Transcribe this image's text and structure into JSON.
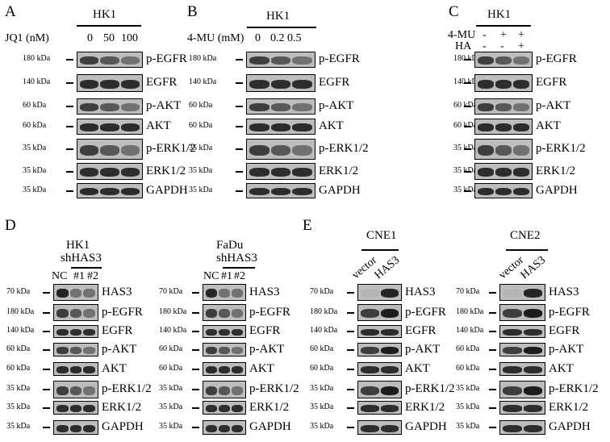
{
  "panels": [
    {
      "id": "A",
      "letter": "A",
      "cell_line": "HK1",
      "treatment_label": "JQ1 (nM)",
      "lanes": [
        "0",
        "50",
        "100"
      ],
      "rows": [
        {
          "kda": "180 kDa",
          "protein": "p-EGFR"
        },
        {
          "kda": "140 kDa",
          "protein": "EGFR"
        },
        {
          "kda": "60 kDa",
          "protein": "p-AKT"
        },
        {
          "kda": "60 kDa",
          "protein": "AKT"
        },
        {
          "kda": "35 kDa",
          "protein": "p-ERK1/2"
        },
        {
          "kda": "35 kDa",
          "protein": "ERK1/2"
        },
        {
          "kda": "35 kDa",
          "protein": "GAPDH"
        }
      ]
    },
    {
      "id": "B",
      "letter": "B",
      "cell_line": "HK1",
      "treatment_label": "4-MU (mM)",
      "lanes": [
        "0",
        "0.2",
        "0.5"
      ],
      "rows": [
        {
          "kda": "180 kDa",
          "protein": "p-EGFR"
        },
        {
          "kda": "140 kDa",
          "protein": "EGFR"
        },
        {
          "kda": "60 kDa",
          "protein": "p-AKT"
        },
        {
          "kda": "60 kDa",
          "protein": "AKT"
        },
        {
          "kda": "35 kDa",
          "protein": "p-ERK1/2"
        },
        {
          "kda": "35 kDa",
          "protein": "ERK1/2"
        },
        {
          "kda": "35 kDa",
          "protein": "GAPDH"
        }
      ]
    },
    {
      "id": "C",
      "letter": "C",
      "cell_line": "HK1",
      "treatments": [
        {
          "label": "4-MU",
          "signs": [
            "-",
            "+",
            "+"
          ]
        },
        {
          "label": "HA",
          "signs": [
            "-",
            "-",
            "+"
          ]
        }
      ],
      "rows": [
        {
          "kda": "180 kDa",
          "protein": "p-EGFR"
        },
        {
          "kda": "140 kDa",
          "protein": "EGFR"
        },
        {
          "kda": "60 kDa",
          "protein": "p-AKT"
        },
        {
          "kda": "60 kDa",
          "protein": "AKT"
        },
        {
          "kda": "35 kDa",
          "protein": "p-ERK1/2"
        },
        {
          "kda": "35 kDa",
          "protein": "ERK1/2"
        },
        {
          "kda": "35 kDa",
          "protein": "GAPDH"
        }
      ]
    },
    {
      "id": "D1",
      "letter": "D",
      "cell_line": "HK1",
      "group_label": "shHAS3",
      "lanes": [
        "NC",
        "#1",
        "#2"
      ],
      "rows": [
        {
          "kda": "70 kDa",
          "protein": "HAS3"
        },
        {
          "kda": "180 kDa",
          "protein": "p-EGFR"
        },
        {
          "kda": "140 kDa",
          "protein": "EGFR"
        },
        {
          "kda": "60 kDa",
          "protein": "p-AKT"
        },
        {
          "kda": "60 kDa",
          "protein": "AKT"
        },
        {
          "kda": "35 kDa",
          "protein": "p-ERK1/2"
        },
        {
          "kda": "35 kDa",
          "protein": "ERK1/2"
        },
        {
          "kda": "35 kDa",
          "protein": "GAPDH"
        }
      ]
    },
    {
      "id": "D2",
      "letter": "",
      "cell_line": "FaDu",
      "group_label": "shHAS3",
      "lanes": [
        "NC",
        "#1",
        "#2"
      ],
      "rows": [
        {
          "kda": "70 kDa",
          "protein": "HAS3"
        },
        {
          "kda": "180 kDa",
          "protein": "p-EGFR"
        },
        {
          "kda": "140 kDa",
          "protein": "EGFR"
        },
        {
          "kda": "60 kDa",
          "protein": "p-AKT"
        },
        {
          "kda": "60 kDa",
          "protein": "AKT"
        },
        {
          "kda": "35 kDa",
          "protein": "p-ERK1/2"
        },
        {
          "kda": "35 kDa",
          "protein": "ERK1/2"
        },
        {
          "kda": "35 kDa",
          "protein": "GAPDH"
        }
      ]
    },
    {
      "id": "E1",
      "letter": "E",
      "cell_line": "CNE1",
      "lanes": [
        "vector",
        "HAS3"
      ],
      "rows": [
        {
          "kda": "70 kDa",
          "protein": "HAS3"
        },
        {
          "kda": "180 kDa",
          "protein": "p-EGFR"
        },
        {
          "kda": "140 kDa",
          "protein": "EGFR"
        },
        {
          "kda": "60 kDa",
          "protein": "p-AKT"
        },
        {
          "kda": "60 kDa",
          "protein": "AKT"
        },
        {
          "kda": "35 kDa",
          "protein": "p-ERK1/2"
        },
        {
          "kda": "35 kDa",
          "protein": "ERK1/2"
        },
        {
          "kda": "35 kDa",
          "protein": "GAPDH"
        }
      ]
    },
    {
      "id": "E2",
      "letter": "",
      "cell_line": "CNE2",
      "lanes": [
        "vector",
        "HAS3"
      ],
      "rows": [
        {
          "kda": "70 kDa",
          "protein": "HAS3"
        },
        {
          "kda": "180 kDa",
          "protein": "p-EGFR"
        },
        {
          "kda": "140 kDa",
          "protein": "EGFR"
        },
        {
          "kda": "60 kDa",
          "protein": "p-AKT"
        },
        {
          "kda": "60 kDa",
          "protein": "AKT"
        },
        {
          "kda": "35 kDa",
          "protein": "p-ERK1/2"
        },
        {
          "kda": "35 kDa",
          "protein": "ERK1/2"
        },
        {
          "kda": "35 kDa",
          "protein": "GAPDH"
        }
      ]
    }
  ]
}
